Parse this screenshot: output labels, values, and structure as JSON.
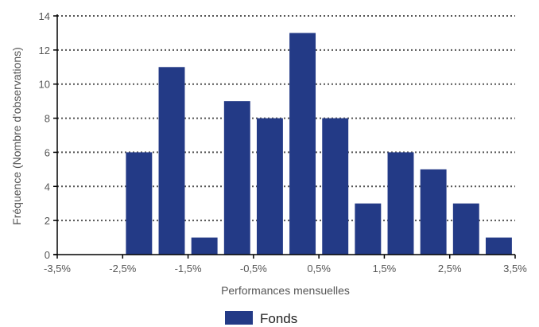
{
  "chart_data": {
    "type": "bar",
    "categories": [
      "-3,25%",
      "-2,75%",
      "-2,25%",
      "-1,75%",
      "-1,25%",
      "-0,75%",
      "-0,25%",
      "0,25%",
      "0,75%",
      "1,25%",
      "1,75%",
      "2,25%",
      "2,75%",
      "3,25%"
    ],
    "series": [
      {
        "name": "Fonds",
        "values": [
          0,
          0,
          6,
          11,
          1,
          9,
          8,
          13,
          8,
          3,
          6,
          5,
          3,
          1
        ]
      }
    ],
    "bin_edges": [
      -3.5,
      -3.0,
      -2.5,
      -2.0,
      -1.5,
      -1.0,
      -0.5,
      0.0,
      0.5,
      1.0,
      1.5,
      2.0,
      2.5,
      3.0,
      3.5
    ],
    "xlim": [
      -3.5,
      3.5
    ],
    "x_ticks": [
      -3.5,
      -2.5,
      -1.5,
      -0.5,
      0.5,
      1.5,
      2.5,
      3.5
    ],
    "x_tick_labels": [
      "-3,5%",
      "-2,5%",
      "-1,5%",
      "-0,5%",
      "0,5%",
      "1,5%",
      "2,5%",
      "3,5%"
    ],
    "ylim": [
      0,
      14
    ],
    "y_ticks": [
      0,
      2,
      4,
      6,
      8,
      10,
      12,
      14
    ],
    "y_tick_labels": [
      "0",
      "2",
      "4",
      "6",
      "8",
      "10",
      "12",
      "14"
    ],
    "xlabel": "Performances mensuelles",
    "ylabel": "Fréquence (Nombre d'observations)",
    "grid": "horizontal dotted",
    "legend_position": "bottom-center",
    "colors": {
      "bar": "#233a86",
      "grid": "#555555",
      "axis": "#000000"
    }
  }
}
